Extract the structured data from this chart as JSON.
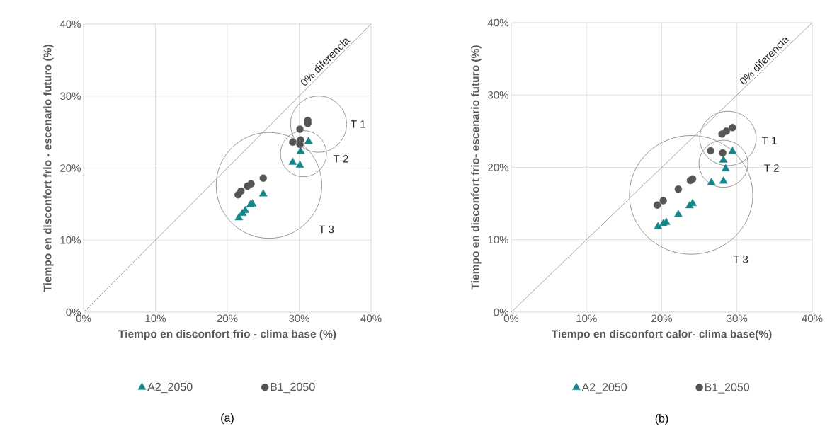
{
  "chart_data": [
    {
      "type": "scatter",
      "title": "(a)",
      "xlabel": "Tiempo en disconfort frio - clima base (%)",
      "ylabel": "Tiempo en disconfort frio - escenario futuro (%)",
      "annotations": [
        "0% diferencia",
        "T 1",
        "T 2",
        "T 3"
      ],
      "series": [
        {
          "type": "line",
          "x": [
            0,
            40
          ],
          "values": [
            0,
            40
          ],
          "color": "#a6a6a6",
          "marker": "none"
        },
        {
          "name": "A2_2050",
          "color": "#17868a",
          "marker": "triangle",
          "x": [
            21.6,
            22.1,
            22.5,
            23.2,
            23.5,
            25.0,
            29.1,
            30.1,
            30.2,
            31.3
          ],
          "values": [
            13.1,
            13.7,
            14.1,
            14.9,
            15.0,
            16.4,
            20.8,
            20.4,
            22.3,
            23.7
          ]
        },
        {
          "name": "B1_2050",
          "color": "#555555",
          "marker": "circle",
          "x": [
            21.5,
            21.9,
            22.8,
            23.3,
            25.0,
            29.1,
            30.1,
            30.2,
            30.1,
            31.2,
            31.2
          ],
          "values": [
            16.3,
            16.8,
            17.5,
            17.8,
            18.6,
            23.6,
            23.3,
            23.9,
            25.4,
            26.2,
            26.6
          ]
        }
      ],
      "xlim": [
        0,
        40
      ],
      "ylim": [
        0,
        40
      ],
      "xticks": [
        {
          "value": 0,
          "label": "0%"
        },
        {
          "value": 10,
          "label": "10%"
        },
        {
          "value": 20,
          "label": "20%"
        },
        {
          "value": 30,
          "label": "30%"
        },
        {
          "value": 40,
          "label": "40%"
        }
      ],
      "yticks": [
        {
          "value": 0,
          "label": "0%"
        },
        {
          "value": 10,
          "label": "10%"
        },
        {
          "value": 20,
          "label": "20%"
        },
        {
          "value": 30,
          "label": "30%"
        },
        {
          "value": 40,
          "label": "40%"
        }
      ],
      "grid": true,
      "legend": "bottom"
    },
    {
      "type": "scatter",
      "title": "(b)",
      "xlabel": "Tiempo en disconfort calor- clima base(%)",
      "ylabel": "Tiempo en disconfort frio- escenario futuro (%)",
      "annotations": [
        "0% diferencia",
        "T 1",
        "T 2",
        "T 3"
      ],
      "series": [
        {
          "type": "line",
          "x": [
            0,
            40
          ],
          "values": [
            0,
            40
          ],
          "color": "#a6a6a6",
          "marker": "none"
        },
        {
          "name": "A2_2050",
          "color": "#17868a",
          "marker": "triangle",
          "x": [
            19.5,
            20.2,
            20.6,
            22.2,
            23.7,
            24.1,
            26.6,
            28.2,
            28.5,
            28.2,
            29.4
          ],
          "values": [
            11.8,
            12.2,
            12.4,
            13.5,
            14.7,
            15.0,
            17.9,
            18.1,
            19.8,
            21.0,
            22.2
          ]
        },
        {
          "name": "B1_2050",
          "color": "#555555",
          "marker": "circle",
          "x": [
            19.4,
            20.2,
            22.2,
            23.8,
            24.1,
            26.5,
            28.1,
            28.0,
            28.6,
            29.4
          ],
          "values": [
            14.8,
            15.4,
            17.0,
            18.2,
            18.4,
            22.3,
            22.0,
            24.6,
            25.0,
            25.5
          ]
        }
      ],
      "xlim": [
        0,
        40
      ],
      "ylim": [
        0,
        40
      ],
      "xticks": [
        {
          "value": 0,
          "label": "0%"
        },
        {
          "value": 10,
          "label": "10%"
        },
        {
          "value": 20,
          "label": "20%"
        },
        {
          "value": 30,
          "label": "30%"
        },
        {
          "value": 40,
          "label": "40%"
        }
      ],
      "yticks": [
        {
          "value": 0,
          "label": "0%"
        },
        {
          "value": 10,
          "label": "10%"
        },
        {
          "value": 20,
          "label": "20%"
        },
        {
          "value": 30,
          "label": "30%"
        },
        {
          "value": 40,
          "label": "40%"
        }
      ],
      "grid": true,
      "legend": "bottom"
    }
  ]
}
